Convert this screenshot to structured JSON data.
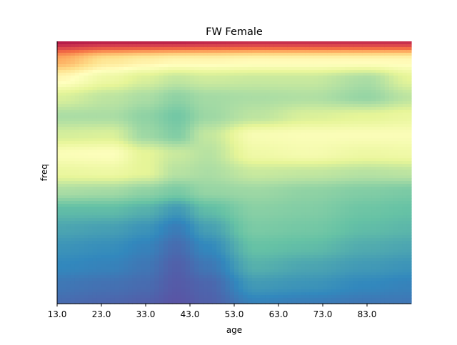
{
  "chart_data": {
    "type": "heatmap",
    "title": "FW Female",
    "xlabel": "age",
    "ylabel": "freq",
    "xlim": [
      13.0,
      93.0
    ],
    "x_ticks": [
      "13.0",
      "23.0",
      "33.0",
      "43.0",
      "53.0",
      "63.0",
      "73.0",
      "83.0"
    ],
    "x_tick_values": [
      13.0,
      23.0,
      33.0,
      43.0,
      53.0,
      63.0,
      73.0,
      83.0
    ],
    "y_ticks": [],
    "colormap": "Spectral_r",
    "colormap_stops": [
      "#5e4fa2",
      "#3288bd",
      "#66c2a5",
      "#abdda4",
      "#e6f598",
      "#ffffbf",
      "#fee08b",
      "#fdae61",
      "#f46d43",
      "#d53e4f",
      "#9e0142"
    ],
    "grid": false,
    "colorbar": false,
    "z_profiles": [
      {
        "age": 13,
        "freq_top_to_bottom": [
          0.96,
          0.7,
          0.52,
          0.38,
          0.3,
          0.37,
          0.48,
          0.42,
          0.3,
          0.19,
          0.15,
          0.12,
          0.1,
          0.07,
          0.05
        ]
      },
      {
        "age": 25,
        "freq_top_to_bottom": [
          0.95,
          0.58,
          0.43,
          0.33,
          0.3,
          0.38,
          0.49,
          0.43,
          0.29,
          0.19,
          0.14,
          0.11,
          0.09,
          0.06,
          0.04
        ]
      },
      {
        "age": 33,
        "freq_top_to_bottom": [
          0.95,
          0.55,
          0.38,
          0.3,
          0.26,
          0.28,
          0.4,
          0.4,
          0.26,
          0.17,
          0.12,
          0.09,
          0.07,
          0.05,
          0.03
        ]
      },
      {
        "age": 40,
        "freq_top_to_bottom": [
          0.95,
          0.53,
          0.34,
          0.26,
          0.22,
          0.24,
          0.35,
          0.32,
          0.23,
          0.13,
          0.08,
          0.05,
          0.03,
          0.02,
          0.01
        ]
      },
      {
        "age": 47,
        "freq_top_to_bottom": [
          0.94,
          0.53,
          0.36,
          0.29,
          0.28,
          0.34,
          0.32,
          0.3,
          0.27,
          0.19,
          0.14,
          0.1,
          0.07,
          0.04,
          0.03
        ]
      },
      {
        "age": 58,
        "freq_top_to_bottom": [
          0.93,
          0.52,
          0.35,
          0.3,
          0.33,
          0.47,
          0.44,
          0.35,
          0.28,
          0.25,
          0.23,
          0.2,
          0.17,
          0.13,
          0.09
        ]
      },
      {
        "age": 70,
        "freq_top_to_bottom": [
          0.93,
          0.52,
          0.35,
          0.31,
          0.38,
          0.48,
          0.46,
          0.34,
          0.26,
          0.24,
          0.22,
          0.19,
          0.15,
          0.12,
          0.08
        ]
      },
      {
        "age": 83,
        "freq_top_to_bottom": [
          0.93,
          0.52,
          0.3,
          0.27,
          0.4,
          0.48,
          0.43,
          0.32,
          0.24,
          0.21,
          0.19,
          0.16,
          0.13,
          0.1,
          0.07
        ]
      },
      {
        "age": 93,
        "freq_top_to_bottom": [
          0.93,
          0.52,
          0.4,
          0.33,
          0.42,
          0.48,
          0.44,
          0.33,
          0.23,
          0.2,
          0.18,
          0.15,
          0.12,
          0.09,
          0.07
        ]
      }
    ]
  }
}
